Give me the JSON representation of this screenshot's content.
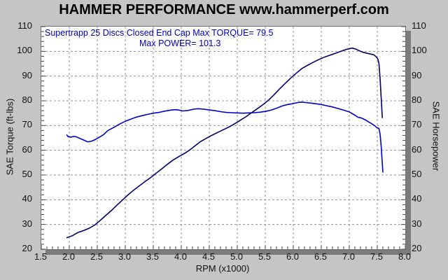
{
  "chart_data": {
    "type": "line",
    "title": "HAMMER PERFORMANCE www.hammerperf.com",
    "annotation": {
      "line1": "Supertrapp 25 Discs Closed End Cap  Max TORQUE= 79.5",
      "line2": "Max POWER= 101.3"
    },
    "xlabel": "RPM (x1000)",
    "ylabel_left": "SAE Torque (ft-lbs)",
    "ylabel_right": "SAE Horsepower",
    "xlim": [
      1.5,
      8.0
    ],
    "ylim": [
      20,
      110
    ],
    "x_tick_labels": [
      "1.5",
      "2.0",
      "2.5",
      "3.0",
      "3.5",
      "4.0",
      "4.5",
      "5.0",
      "5.5",
      "6.0",
      "6.5",
      "7.0",
      "7.5",
      "8.0"
    ],
    "y_tick_labels": [
      "20",
      "30",
      "40",
      "50",
      "60",
      "70",
      "80",
      "90",
      "100",
      "110"
    ],
    "x_minor_step": 0.1,
    "y_minor_step": 2,
    "grid_style": "dashed",
    "max_torque": 79.5,
    "max_power": 101.3,
    "colors": {
      "background": "#c5c5c5",
      "plot_background": "#ffffff",
      "gridline": "#909090",
      "tick": "#444444",
      "torque_curve": "#0000cc",
      "power_curve": "#000066",
      "annotation_text": "#0000bb"
    },
    "series": [
      {
        "key": "torque",
        "name": "SAE Torque (ft-lbs)",
        "color": "#0000cc",
        "points": [
          [
            1.95,
            66.3
          ],
          [
            1.98,
            65.5
          ],
          [
            2.03,
            65.3
          ],
          [
            2.08,
            65.6
          ],
          [
            2.13,
            65.4
          ],
          [
            2.2,
            64.7
          ],
          [
            2.27,
            64.0
          ],
          [
            2.33,
            63.4
          ],
          [
            2.4,
            63.7
          ],
          [
            2.47,
            64.4
          ],
          [
            2.53,
            65.2
          ],
          [
            2.61,
            66.3
          ],
          [
            2.69,
            68.0
          ],
          [
            2.8,
            69.3
          ],
          [
            2.9,
            70.6
          ],
          [
            3.0,
            71.7
          ],
          [
            3.1,
            72.6
          ],
          [
            3.2,
            73.4
          ],
          [
            3.3,
            74.0
          ],
          [
            3.4,
            74.5
          ],
          [
            3.5,
            75.0
          ],
          [
            3.6,
            75.3
          ],
          [
            3.7,
            75.8
          ],
          [
            3.8,
            76.2
          ],
          [
            3.88,
            76.4
          ],
          [
            3.95,
            76.3
          ],
          [
            4.03,
            75.9
          ],
          [
            4.12,
            76.1
          ],
          [
            4.22,
            76.6
          ],
          [
            4.3,
            76.8
          ],
          [
            4.4,
            76.6
          ],
          [
            4.5,
            76.3
          ],
          [
            4.6,
            76.0
          ],
          [
            4.7,
            75.6
          ],
          [
            4.8,
            75.3
          ],
          [
            4.9,
            75.2
          ],
          [
            5.0,
            75.1
          ],
          [
            5.1,
            75.0
          ],
          [
            5.2,
            75.1
          ],
          [
            5.3,
            75.2
          ],
          [
            5.4,
            75.4
          ],
          [
            5.5,
            75.7
          ],
          [
            5.6,
            76.2
          ],
          [
            5.7,
            77.0
          ],
          [
            5.8,
            77.9
          ],
          [
            5.9,
            78.5
          ],
          [
            6.0,
            78.9
          ],
          [
            6.08,
            79.3
          ],
          [
            6.15,
            79.5
          ],
          [
            6.22,
            79.3
          ],
          [
            6.3,
            79.1
          ],
          [
            6.4,
            78.8
          ],
          [
            6.5,
            78.5
          ],
          [
            6.6,
            78.0
          ],
          [
            6.7,
            77.5
          ],
          [
            6.8,
            76.9
          ],
          [
            6.9,
            76.2
          ],
          [
            7.0,
            75.5
          ],
          [
            7.1,
            74.2
          ],
          [
            7.15,
            73.4
          ],
          [
            7.22,
            73.0
          ],
          [
            7.3,
            72.1
          ],
          [
            7.38,
            71.0
          ],
          [
            7.45,
            70.0
          ],
          [
            7.49,
            69.2
          ],
          [
            7.53,
            68.8
          ],
          [
            7.55,
            66.5
          ],
          [
            7.57,
            61.5
          ],
          [
            7.59,
            54.5
          ],
          [
            7.6,
            51.0
          ]
        ]
      },
      {
        "key": "power",
        "name": "SAE Horsepower",
        "color": "#000066",
        "points": [
          [
            1.95,
            24.6
          ],
          [
            2.05,
            25.4
          ],
          [
            2.15,
            26.7
          ],
          [
            2.25,
            27.5
          ],
          [
            2.35,
            28.4
          ],
          [
            2.45,
            29.7
          ],
          [
            2.55,
            31.6
          ],
          [
            2.65,
            33.6
          ],
          [
            2.75,
            35.6
          ],
          [
            2.85,
            37.8
          ],
          [
            2.95,
            39.9
          ],
          [
            3.05,
            42.0
          ],
          [
            3.15,
            43.9
          ],
          [
            3.25,
            45.6
          ],
          [
            3.35,
            47.3
          ],
          [
            3.45,
            48.9
          ],
          [
            3.55,
            50.7
          ],
          [
            3.65,
            52.5
          ],
          [
            3.75,
            54.3
          ],
          [
            3.85,
            56.0
          ],
          [
            3.95,
            57.4
          ],
          [
            4.05,
            58.6
          ],
          [
            4.15,
            60.1
          ],
          [
            4.25,
            61.9
          ],
          [
            4.35,
            63.6
          ],
          [
            4.45,
            64.9
          ],
          [
            4.55,
            66.1
          ],
          [
            4.65,
            67.2
          ],
          [
            4.75,
            68.3
          ],
          [
            4.85,
            69.4
          ],
          [
            4.95,
            70.7
          ],
          [
            5.05,
            72.1
          ],
          [
            5.15,
            73.5
          ],
          [
            5.25,
            75.1
          ],
          [
            5.35,
            76.7
          ],
          [
            5.45,
            78.3
          ],
          [
            5.55,
            80.1
          ],
          [
            5.65,
            82.3
          ],
          [
            5.75,
            84.7
          ],
          [
            5.85,
            86.9
          ],
          [
            5.95,
            89.1
          ],
          [
            6.05,
            91.1
          ],
          [
            6.15,
            93.0
          ],
          [
            6.25,
            94.3
          ],
          [
            6.35,
            95.5
          ],
          [
            6.45,
            96.6
          ],
          [
            6.55,
            97.6
          ],
          [
            6.65,
            98.4
          ],
          [
            6.75,
            99.2
          ],
          [
            6.85,
            100.0
          ],
          [
            6.95,
            100.8
          ],
          [
            7.05,
            101.3
          ],
          [
            7.12,
            100.9
          ],
          [
            7.18,
            100.2
          ],
          [
            7.25,
            99.6
          ],
          [
            7.32,
            99.2
          ],
          [
            7.38,
            98.9
          ],
          [
            7.44,
            98.6
          ],
          [
            7.48,
            97.8
          ],
          [
            7.51,
            96.9
          ],
          [
            7.53,
            95.0
          ],
          [
            7.55,
            89.0
          ],
          [
            7.57,
            81.0
          ],
          [
            7.59,
            73.0
          ]
        ]
      }
    ]
  }
}
